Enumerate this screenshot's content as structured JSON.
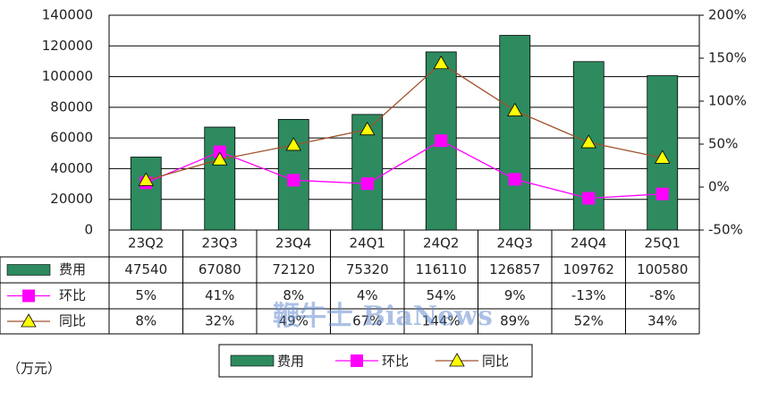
{
  "chart_data": {
    "type": "bar-line",
    "categories": [
      "23Q2",
      "23Q3",
      "23Q4",
      "24Q1",
      "24Q2",
      "24Q3",
      "24Q4",
      "25Q1"
    ],
    "series": [
      {
        "name": "费用",
        "type": "bar",
        "color": "#2e8b5f",
        "values": [
          47540,
          67080,
          72120,
          75320,
          116110,
          126857,
          109762,
          100580
        ]
      },
      {
        "name": "环比",
        "type": "line",
        "axis": "y2",
        "color": "#ff00ff",
        "marker": "square",
        "marker_color": "#ff00ff",
        "values": [
          5,
          41,
          8,
          4,
          54,
          9,
          -13,
          -8
        ],
        "value_labels": [
          "5%",
          "41%",
          "8%",
          "4%",
          "54%",
          "9%",
          "-13%",
          "-8%"
        ]
      },
      {
        "name": "同比",
        "type": "line",
        "axis": "y2",
        "color": "#a0522d",
        "marker": "triangle",
        "marker_color": "#ffff00",
        "values": [
          8,
          32,
          49,
          67,
          144,
          89,
          52,
          34
        ],
        "value_labels": [
          "8%",
          "32%",
          "49%",
          "67%",
          "144%",
          "89%",
          "52%",
          "34%"
        ]
      }
    ],
    "ylim": [
      0,
      140000
    ],
    "yticks": [
      0,
      20000,
      40000,
      60000,
      80000,
      100000,
      120000,
      140000
    ],
    "y2lim": [
      -50,
      200
    ],
    "y2ticks": [
      {
        "value": -50,
        "label": "-50%"
      },
      {
        "value": 0,
        "label": "0%"
      },
      {
        "value": 50,
        "label": "50%"
      },
      {
        "value": 100,
        "label": "100%"
      },
      {
        "value": 150,
        "label": "150%"
      },
      {
        "value": 200,
        "label": "200%"
      }
    ],
    "grid": true,
    "legend": "bottom",
    "unit_label": "（万元）",
    "watermark": "鞭牛士 BiaNews"
  }
}
